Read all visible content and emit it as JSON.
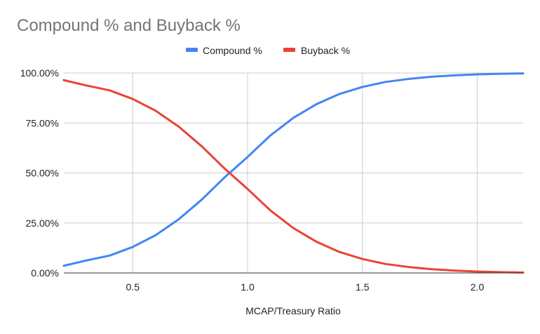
{
  "chart_data": {
    "type": "line",
    "title": "Compound % and Buyback %",
    "xlabel": "MCAP/Treasury Ratio",
    "ylabel": "",
    "xlim": [
      0.2,
      2.2
    ],
    "ylim": [
      0,
      100
    ],
    "x_ticks": [
      0.5,
      1.0,
      1.5,
      2.0
    ],
    "x_tick_labels": [
      "0.5",
      "1.0",
      "1.5",
      "2.0"
    ],
    "y_ticks": [
      0,
      25,
      50,
      75,
      100
    ],
    "y_tick_labels": [
      "0.00%",
      "25.00%",
      "50.00%",
      "75.00%",
      "100.00%"
    ],
    "grid": true,
    "legend_position": "top",
    "x": [
      0.2,
      0.3,
      0.4,
      0.5,
      0.6,
      0.7,
      0.8,
      0.9,
      1.0,
      1.1,
      1.2,
      1.3,
      1.4,
      1.5,
      1.6,
      1.7,
      1.8,
      1.9,
      2.0,
      2.1,
      2.2
    ],
    "series": [
      {
        "name": "Compound %",
        "color": "#4285f4",
        "values": [
          3.6,
          6.3,
          8.7,
          13.0,
          18.9,
          26.8,
          36.6,
          47.8,
          58.0,
          68.8,
          77.6,
          84.4,
          89.5,
          93.0,
          95.5,
          97.0,
          98.1,
          98.8,
          99.3,
          99.6,
          99.8
        ]
      },
      {
        "name": "Buyback %",
        "color": "#ea4335",
        "values": [
          96.4,
          93.7,
          91.3,
          87.0,
          81.1,
          73.2,
          63.4,
          52.2,
          42.0,
          31.2,
          22.4,
          15.6,
          10.5,
          7.0,
          4.5,
          3.0,
          1.9,
          1.2,
          0.7,
          0.4,
          0.2
        ]
      }
    ]
  }
}
